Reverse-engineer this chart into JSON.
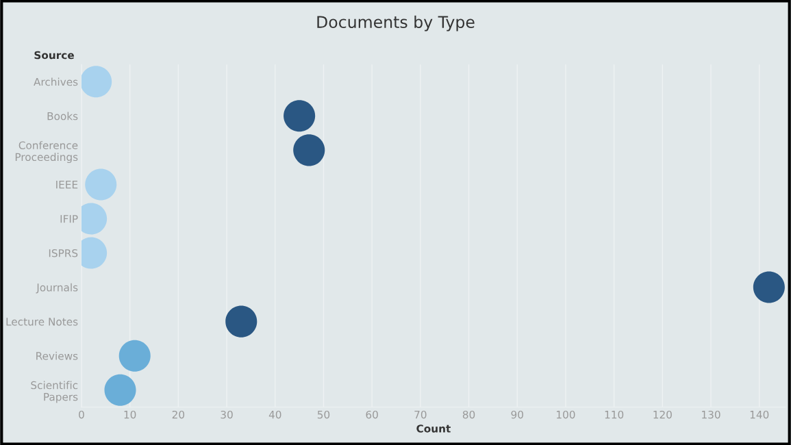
{
  "chart_data": {
    "type": "scatter",
    "orientation": "horizontal",
    "title": "Documents by Type",
    "xlabel": "Count",
    "ylabel": "Source",
    "categories": [
      "Archives",
      "Books",
      "Conference\nProceedings",
      "IEEE",
      "IFIP",
      "ISPRS",
      "Journals",
      "Lecture Notes",
      "Reviews",
      "Scientific\nPapers"
    ],
    "values": [
      3,
      45,
      47,
      4,
      2,
      2,
      142,
      33,
      11,
      8
    ],
    "colors": [
      "#a8d2ee",
      "#2a5783",
      "#2a5783",
      "#a8d2ee",
      "#a8d2ee",
      "#a8d2ee",
      "#2a5783",
      "#2a5783",
      "#6aaed8",
      "#6aaed8"
    ],
    "xlim": [
      0,
      145.4
    ],
    "xticks": [
      0,
      10,
      20,
      30,
      40,
      50,
      60,
      70,
      80,
      90,
      100,
      110,
      120,
      130,
      140
    ],
    "grid": "x",
    "marker": "circle",
    "legend": false
  }
}
